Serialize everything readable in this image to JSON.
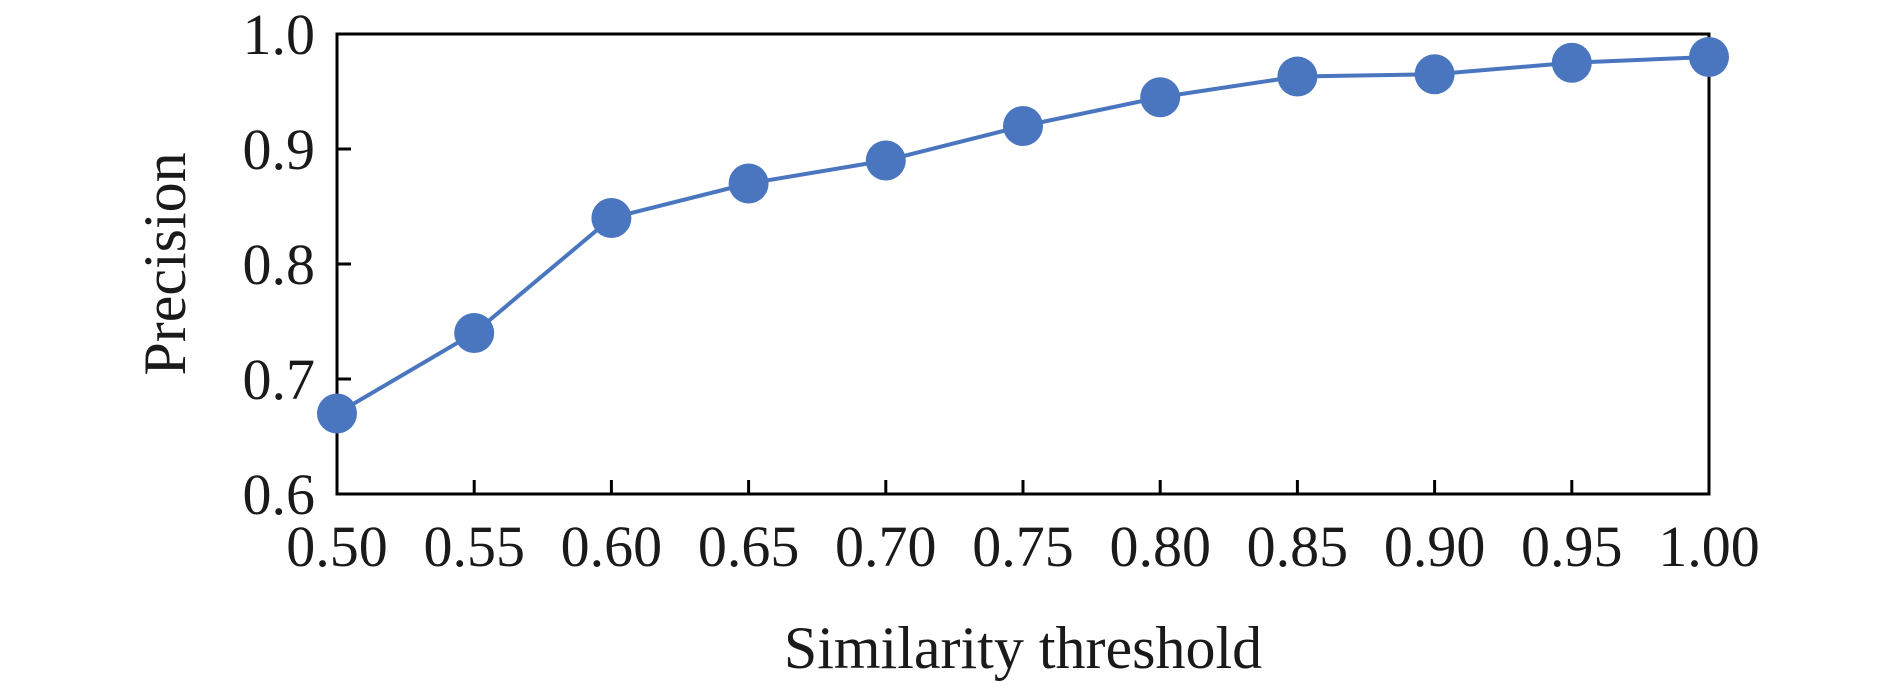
{
  "chart_data": {
    "type": "line",
    "title": "",
    "xlabel": "Similarity threshold",
    "ylabel": "Precision",
    "xlim": [
      0.5,
      1.0
    ],
    "ylim": [
      0.6,
      1.0
    ],
    "grid": false,
    "x_ticks": [
      "0.50",
      "0.55",
      "0.60",
      "0.65",
      "0.70",
      "0.75",
      "0.80",
      "0.85",
      "0.90",
      "0.95",
      "1.00"
    ],
    "y_ticks": [
      "0.6",
      "0.7",
      "0.8",
      "0.9",
      "1.0"
    ],
    "series": [
      {
        "color": "#4a76c0",
        "x": [
          0.5,
          0.55,
          0.6,
          0.65,
          0.7,
          0.75,
          0.8,
          0.85,
          0.9,
          0.95,
          1.0
        ],
        "y": [
          0.67,
          0.74,
          0.84,
          0.87,
          0.89,
          0.92,
          0.945,
          0.963,
          0.965,
          0.975,
          0.98
        ]
      }
    ]
  }
}
